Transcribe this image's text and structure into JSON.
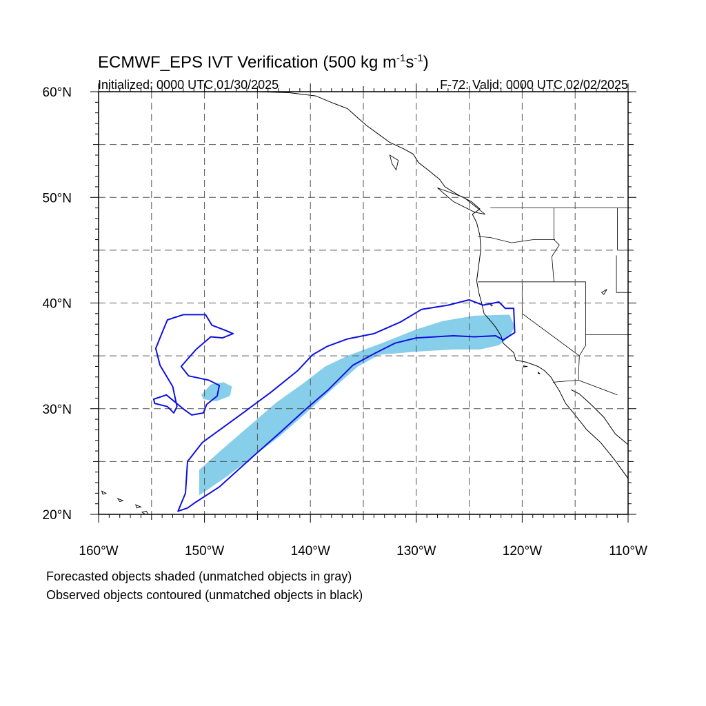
{
  "header": {
    "title_main": "ECMWF_EPS IVT Verification (500 kg m",
    "title_sup1": "-1",
    "title_s": "s",
    "title_sup2": "-1",
    "title_close": ")",
    "initialized": "Initialized: 0000 UTC 01/30/2025",
    "valid": "F-72: Valid: 0000 UTC 02/02/2025"
  },
  "map": {
    "lon_range": [
      -160,
      -110
    ],
    "lat_range": [
      20,
      60
    ],
    "lat_labels": [
      {
        "lat": 60,
        "label": "60°N"
      },
      {
        "lat": 50,
        "label": "50°N"
      },
      {
        "lat": 40,
        "label": "40°N"
      },
      {
        "lat": 30,
        "label": "30°N"
      },
      {
        "lat": 20,
        "label": "20°N"
      }
    ],
    "lon_labels": [
      {
        "lon": -160,
        "label": "160°W"
      },
      {
        "lon": -150,
        "label": "150°W"
      },
      {
        "lon": -140,
        "label": "140°W"
      },
      {
        "lon": -130,
        "label": "130°W"
      },
      {
        "lon": -120,
        "label": "120°W"
      },
      {
        "lon": -110,
        "label": "110°W"
      }
    ],
    "grid_interval_deg": 5,
    "colors": {
      "forecast_fill": "#87ceeb",
      "observed_contour": "#1010e0",
      "coastline": "#000000",
      "grid": "#555555"
    },
    "forecast_object": [
      [
        -150.5,
        21.8
      ],
      [
        -150.5,
        24.2
      ],
      [
        -148.5,
        26.0
      ],
      [
        -145.5,
        28.6
      ],
      [
        -143.2,
        30.6
      ],
      [
        -140.8,
        32.3
      ],
      [
        -138.6,
        34.0
      ],
      [
        -136.5,
        35.0
      ],
      [
        -133.0,
        36.3
      ],
      [
        -130.0,
        37.5
      ],
      [
        -127.5,
        38.3
      ],
      [
        -124.5,
        38.8
      ],
      [
        -121.2,
        38.9
      ],
      [
        -120.7,
        37.8
      ],
      [
        -121.2,
        36.8
      ],
      [
        -122.2,
        36.0
      ],
      [
        -124.0,
        35.6
      ],
      [
        -126.5,
        35.6
      ],
      [
        -130.0,
        35.4
      ],
      [
        -133.5,
        35.1
      ],
      [
        -135.5,
        34.0
      ],
      [
        -138.0,
        31.8
      ],
      [
        -140.5,
        29.5
      ],
      [
        -143.0,
        27.3
      ],
      [
        -145.5,
        25.4
      ],
      [
        -148.0,
        23.5
      ]
    ],
    "forecast_small_object": [
      [
        -150.3,
        31.3
      ],
      [
        -149.4,
        32.3
      ],
      [
        -148.2,
        32.5
      ],
      [
        -147.4,
        32.1
      ],
      [
        -147.6,
        31.2
      ],
      [
        -148.9,
        30.7
      ],
      [
        -150.1,
        30.9
      ]
    ],
    "observed_object_main": [
      [
        -152.5,
        20.3
      ],
      [
        -151.8,
        22.0
      ],
      [
        -151.6,
        25.0
      ],
      [
        -150.2,
        26.8
      ],
      [
        -146.5,
        29.5
      ],
      [
        -143.8,
        31.5
      ],
      [
        -141.2,
        33.6
      ],
      [
        -139.8,
        35.1
      ],
      [
        -138.4,
        35.9
      ],
      [
        -136.5,
        36.6
      ],
      [
        -134.0,
        37.1
      ],
      [
        -131.5,
        38.2
      ],
      [
        -129.5,
        39.4
      ],
      [
        -127.0,
        39.8
      ],
      [
        -125.0,
        40.3
      ],
      [
        -123.7,
        39.8
      ],
      [
        -122.2,
        40.1
      ],
      [
        -121.6,
        39.5
      ],
      [
        -120.8,
        39.5
      ],
      [
        -120.7,
        37.2
      ],
      [
        -121.8,
        36.5
      ],
      [
        -122.5,
        36.9
      ],
      [
        -124.5,
        36.8
      ],
      [
        -126.5,
        36.9
      ],
      [
        -130.0,
        36.7
      ],
      [
        -132.0,
        36.2
      ],
      [
        -134.0,
        35.2
      ],
      [
        -136.0,
        34.1
      ],
      [
        -138.3,
        31.8
      ],
      [
        -140.6,
        29.8
      ],
      [
        -142.8,
        27.8
      ],
      [
        -145.5,
        25.4
      ],
      [
        -148.6,
        22.6
      ],
      [
        -150.9,
        21.1
      ],
      [
        -151.6,
        20.6
      ]
    ],
    "observed_object_west": [
      [
        -154.0,
        37.2
      ],
      [
        -153.5,
        38.4
      ],
      [
        -152.0,
        38.9
      ],
      [
        -149.9,
        38.9
      ],
      [
        -149.3,
        37.9
      ],
      [
        -148.0,
        37.4
      ],
      [
        -147.3,
        37.1
      ],
      [
        -148.3,
        36.7
      ],
      [
        -149.4,
        36.8
      ],
      [
        -150.8,
        35.6
      ],
      [
        -152.2,
        34.0
      ],
      [
        -151.5,
        33.1
      ],
      [
        -149.6,
        32.7
      ],
      [
        -148.6,
        32.2
      ],
      [
        -148.8,
        31.2
      ],
      [
        -149.8,
        30.4
      ],
      [
        -150.1,
        29.6
      ],
      [
        -151.2,
        29.4
      ],
      [
        -151.9,
        29.9
      ],
      [
        -153.6,
        31.3
      ],
      [
        -154.8,
        30.9
      ],
      [
        -154.7,
        30.5
      ],
      [
        -153.5,
        30.2
      ],
      [
        -152.9,
        29.6
      ],
      [
        -152.6,
        30.2
      ],
      [
        -153.0,
        32.1
      ],
      [
        -154.2,
        34.1
      ],
      [
        -154.6,
        35.7
      ]
    ],
    "coastline": [
      [
        -145.0,
        60.0
      ],
      [
        -142.0,
        59.9
      ],
      [
        -139.5,
        59.6
      ],
      [
        -137.8,
        58.9
      ],
      [
        -136.5,
        58.4
      ],
      [
        -135.5,
        57.5
      ],
      [
        -134.7,
        56.8
      ],
      [
        -133.6,
        56.0
      ],
      [
        -132.5,
        55.2
      ],
      [
        -131.2,
        54.6
      ],
      [
        -130.3,
        54.1
      ],
      [
        -129.8,
        53.3
      ],
      [
        -128.9,
        52.6
      ],
      [
        -127.8,
        51.7
      ],
      [
        -127.3,
        51.0
      ],
      [
        -126.0,
        50.2
      ],
      [
        -124.8,
        49.6
      ],
      [
        -124.0,
        48.9
      ],
      [
        -124.7,
        48.4
      ],
      [
        -124.3,
        47.6
      ],
      [
        -124.0,
        46.4
      ],
      [
        -123.9,
        45.1
      ],
      [
        -124.1,
        43.6
      ],
      [
        -124.3,
        42.1
      ],
      [
        -124.1,
        41.0
      ],
      [
        -123.8,
        39.9
      ],
      [
        -123.6,
        39.0
      ],
      [
        -122.9,
        38.2
      ],
      [
        -122.5,
        37.7
      ],
      [
        -122.0,
        36.9
      ],
      [
        -121.8,
        36.2
      ],
      [
        -120.8,
        35.3
      ],
      [
        -120.6,
        34.6
      ],
      [
        -119.6,
        34.4
      ],
      [
        -118.5,
        34.0
      ],
      [
        -117.9,
        33.6
      ],
      [
        -117.3,
        33.0
      ],
      [
        -117.0,
        32.5
      ],
      [
        -116.5,
        31.7
      ],
      [
        -115.9,
        30.5
      ],
      [
        -115.0,
        29.4
      ],
      [
        -113.9,
        28.0
      ],
      [
        -112.6,
        26.8
      ],
      [
        -111.3,
        25.2
      ],
      [
        -110.0,
        23.4
      ]
    ],
    "gulf_coast": [
      [
        -115.4,
        31.8
      ],
      [
        -114.6,
        31.4
      ],
      [
        -113.5,
        30.4
      ],
      [
        -112.3,
        29.2
      ],
      [
        -111.2,
        27.6
      ],
      [
        -110.0,
        26.6
      ]
    ],
    "borders": [
      [
        [
          -123.0,
          49.0
        ],
        [
          -110.0,
          49.0
        ]
      ],
      [
        [
          -124.2,
          46.3
        ],
        [
          -123.0,
          46.2
        ],
        [
          -121.0,
          45.7
        ],
        [
          -119.0,
          46.0
        ],
        [
          -116.9,
          46.0
        ]
      ],
      [
        [
          -117.0,
          49.0
        ],
        [
          -117.0,
          46.0
        ],
        [
          -116.5,
          45.5
        ],
        [
          -117.2,
          44.4
        ],
        [
          -117.0,
          42.0
        ]
      ],
      [
        [
          -124.2,
          42.0
        ],
        [
          -114.0,
          42.0
        ]
      ],
      [
        [
          -120.0,
          42.0
        ],
        [
          -120.0,
          39.0
        ],
        [
          -114.6,
          35.0
        ]
      ],
      [
        [
          -114.0,
          42.0
        ],
        [
          -114.0,
          36.0
        ],
        [
          -114.6,
          35.0
        ],
        [
          -114.7,
          32.7
        ],
        [
          -117.1,
          32.5
        ]
      ],
      [
        [
          -114.7,
          32.7
        ],
        [
          -111.0,
          31.3
        ]
      ],
      [
        [
          -111.0,
          49.0
        ],
        [
          -111.0,
          45.0
        ],
        [
          -110.0,
          45.0
        ]
      ],
      [
        [
          -114.0,
          37.0
        ],
        [
          -110.0,
          37.0
        ]
      ],
      [
        [
          -111.1,
          44.5
        ],
        [
          -111.1,
          41.0
        ],
        [
          -110.0,
          41.0
        ]
      ]
    ],
    "islands": [
      [
        [
          -155.9,
          20.2
        ],
        [
          -155.1,
          19.7
        ],
        [
          -155.5,
          20.3
        ],
        [
          -155.9,
          20.2
        ]
      ],
      [
        [
          -156.5,
          20.9
        ],
        [
          -156.0,
          20.7
        ],
        [
          -156.4,
          20.6
        ],
        [
          -156.5,
          20.9
        ]
      ],
      [
        [
          -158.2,
          21.5
        ],
        [
          -157.7,
          21.3
        ],
        [
          -158.0,
          21.2
        ],
        [
          -158.2,
          21.5
        ]
      ],
      [
        [
          -159.7,
          22.2
        ],
        [
          -159.3,
          22.0
        ],
        [
          -159.6,
          21.9
        ],
        [
          -159.7,
          22.2
        ]
      ],
      [
        [
          -119.9,
          34.05
        ],
        [
          -119.5,
          34.0
        ],
        [
          -119.9,
          33.95
        ],
        [
          -119.9,
          34.05
        ]
      ],
      [
        [
          -118.5,
          33.45
        ],
        [
          -118.3,
          33.3
        ],
        [
          -118.5,
          33.35
        ],
        [
          -118.5,
          33.45
        ]
      ],
      [
        [
          -132.5,
          54.0
        ],
        [
          -131.7,
          53.5
        ],
        [
          -131.9,
          52.6
        ],
        [
          -132.3,
          53.2
        ],
        [
          -132.5,
          54.0
        ]
      ],
      [
        [
          -128.0,
          50.9
        ],
        [
          -125.5,
          50.0
        ],
        [
          -123.5,
          48.4
        ],
        [
          -124.5,
          48.6
        ],
        [
          -126.5,
          49.6
        ],
        [
          -128.0,
          50.9
        ]
      ],
      [
        [
          -112.0,
          41.3
        ],
        [
          -112.5,
          41.0
        ],
        [
          -112.3,
          40.8
        ],
        [
          -112.0,
          41.3
        ]
      ]
    ],
    "lakes": [
      [
        [
          -123.1,
          40.0
        ],
        [
          -122.8,
          39.8
        ],
        [
          -122.9,
          39.7
        ],
        [
          -123.1,
          40.0
        ]
      ]
    ]
  },
  "footer": {
    "line1": "Forecasted objects shaded (unmatched objects in gray)",
    "line2": "Observed objects contoured (unmatched objects in black)"
  }
}
